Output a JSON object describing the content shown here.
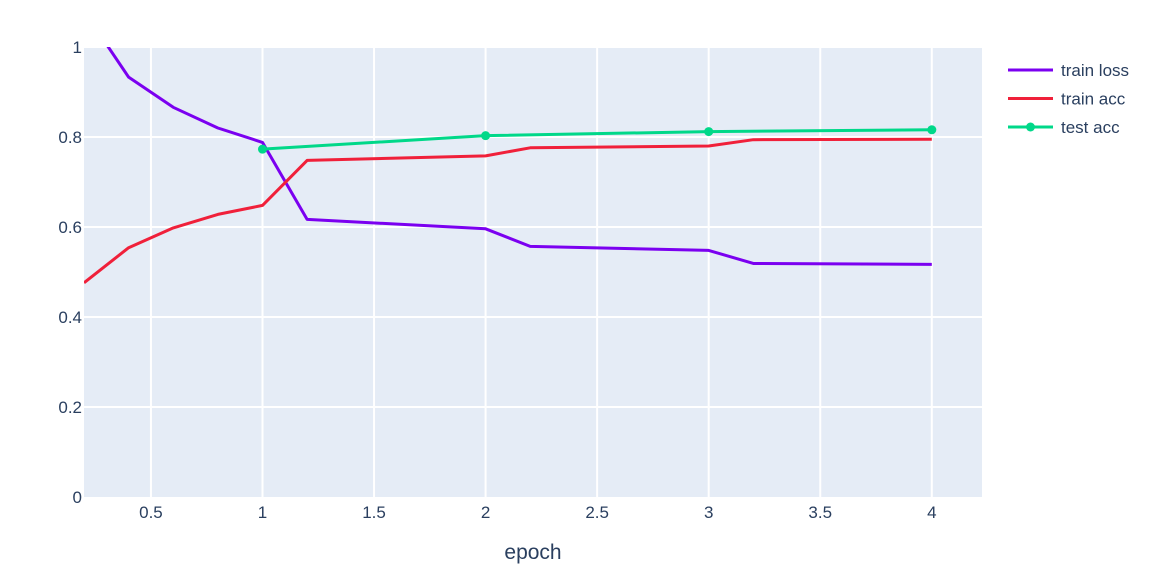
{
  "chart_data": {
    "type": "line",
    "xlabel": "epoch",
    "ylabel": "",
    "xlim": [
      0.2,
      4.225
    ],
    "ylim": [
      0,
      1
    ],
    "x_ticks": [
      {
        "value": 0.5,
        "label": "0.5"
      },
      {
        "value": 1,
        "label": "1"
      },
      {
        "value": 1.5,
        "label": "1.5"
      },
      {
        "value": 2,
        "label": "2"
      },
      {
        "value": 2.5,
        "label": "2.5"
      },
      {
        "value": 3,
        "label": "3"
      },
      {
        "value": 3.5,
        "label": "3.5"
      },
      {
        "value": 4,
        "label": "4"
      }
    ],
    "y_ticks": [
      {
        "value": 0,
        "label": "0"
      },
      {
        "value": 0.2,
        "label": "0.2"
      },
      {
        "value": 0.4,
        "label": "0.4"
      },
      {
        "value": 0.6,
        "label": "0.6"
      },
      {
        "value": 0.8,
        "label": "0.8"
      },
      {
        "value": 1,
        "label": "1"
      }
    ],
    "grid": true,
    "legend_position": "top-right",
    "plot_background": "#e5ecf6",
    "grid_color": "#ffffff",
    "series": [
      {
        "name": "train loss",
        "color": "#7b00f0",
        "markers": false,
        "points": [
          [
            0.2,
            1.08
          ],
          [
            0.4,
            0.933
          ],
          [
            0.6,
            0.866
          ],
          [
            0.8,
            0.82
          ],
          [
            1.0,
            0.788
          ],
          [
            1.2,
            0.617
          ],
          [
            2.0,
            0.596
          ],
          [
            2.2,
            0.557
          ],
          [
            3.0,
            0.548
          ],
          [
            3.2,
            0.519
          ],
          [
            4.0,
            0.517
          ]
        ]
      },
      {
        "name": "train acc",
        "color": "#f0203a",
        "markers": false,
        "points": [
          [
            0.2,
            0.476
          ],
          [
            0.4,
            0.554
          ],
          [
            0.6,
            0.598
          ],
          [
            0.8,
            0.628
          ],
          [
            1.0,
            0.648
          ],
          [
            1.2,
            0.748
          ],
          [
            2.0,
            0.758
          ],
          [
            2.2,
            0.776
          ],
          [
            3.0,
            0.78
          ],
          [
            3.2,
            0.794
          ],
          [
            4.0,
            0.795
          ]
        ]
      },
      {
        "name": "test acc",
        "color": "#00d889",
        "markers": true,
        "points": [
          [
            1.0,
            0.773
          ],
          [
            2.0,
            0.803
          ],
          [
            3.0,
            0.812
          ],
          [
            4.0,
            0.816
          ]
        ]
      }
    ]
  }
}
